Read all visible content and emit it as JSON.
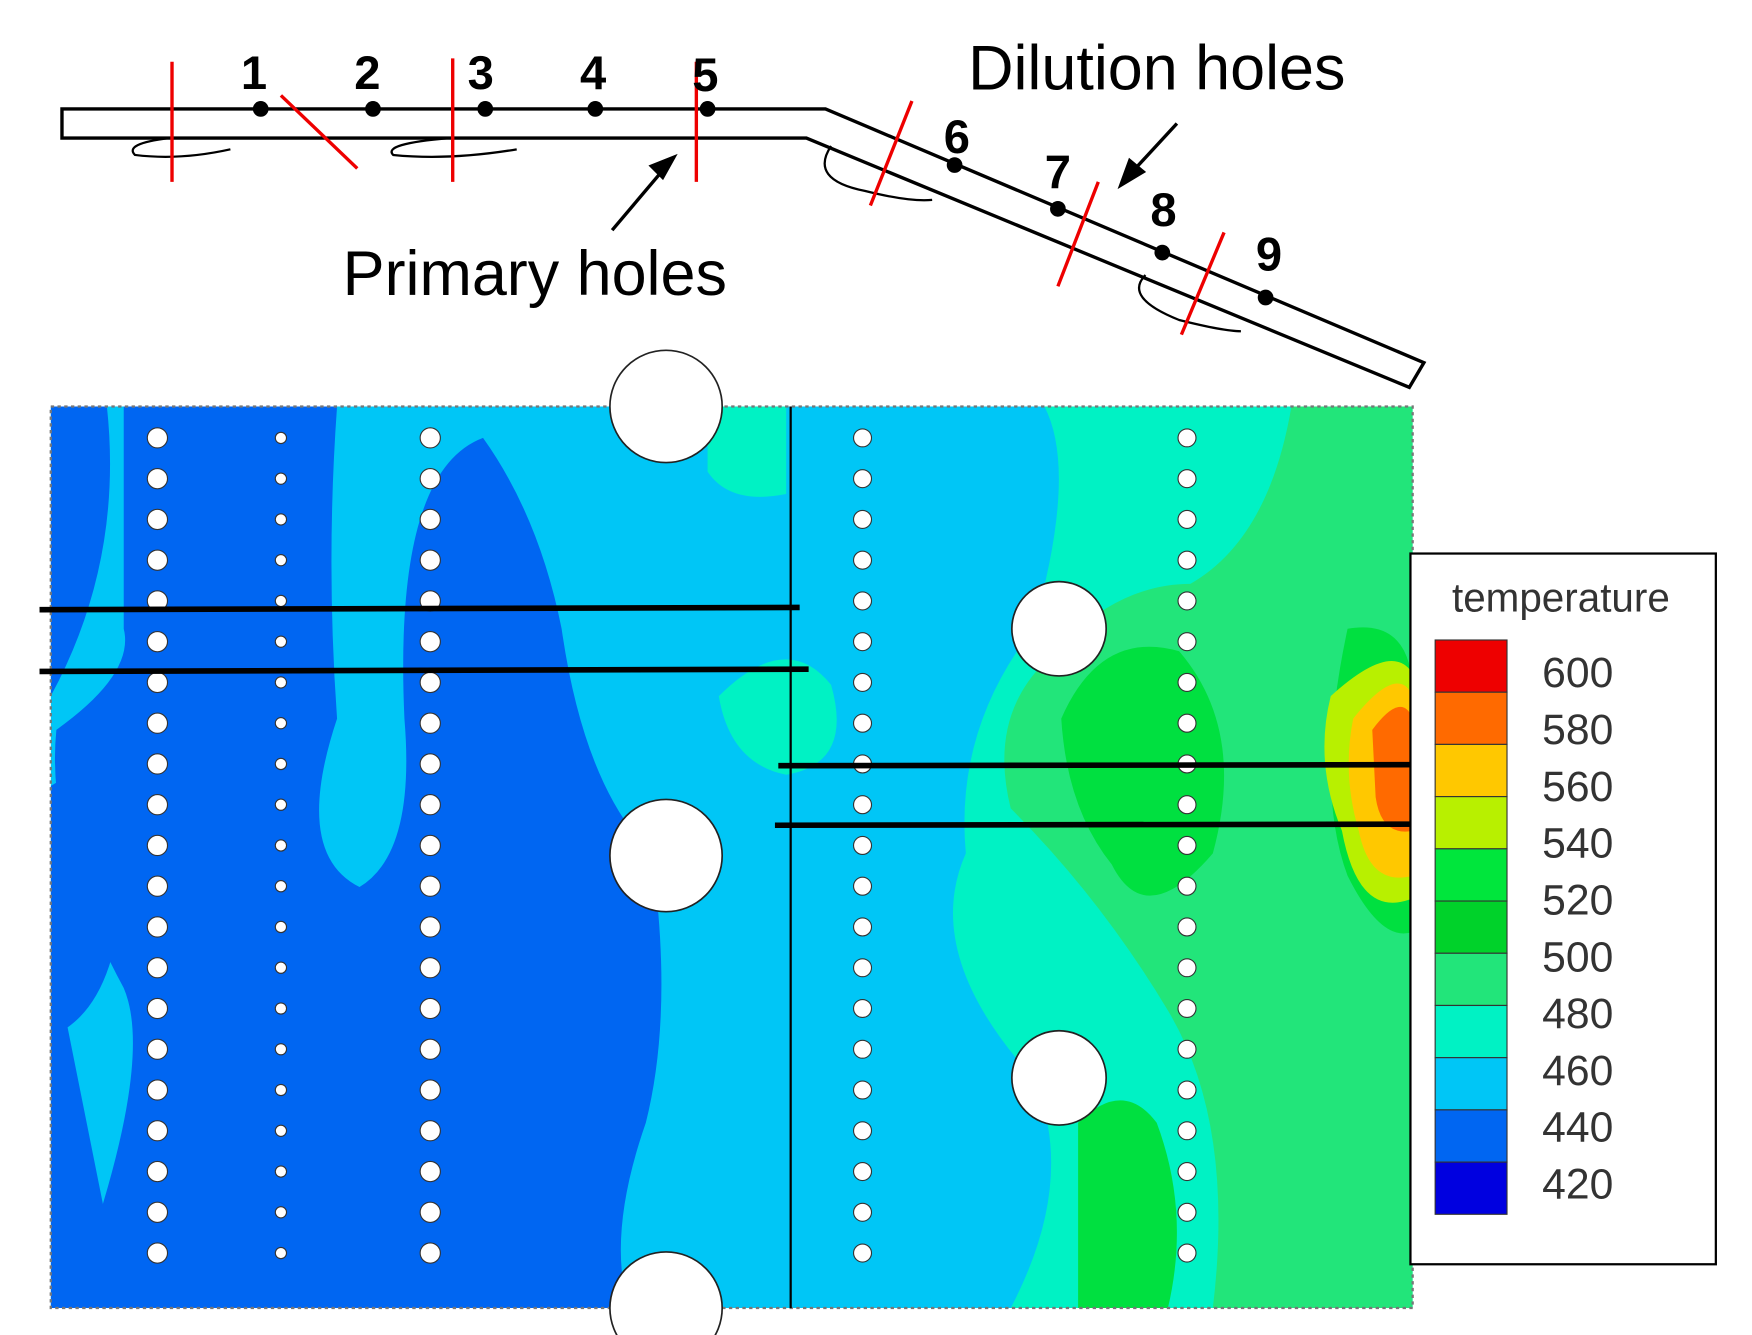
{
  "schematic": {
    "stations": [
      "1",
      "2",
      "3",
      "4",
      "5",
      "6",
      "7",
      "8",
      "9"
    ],
    "dilution_label": "Dilution holes",
    "primary_label": "Primary holes"
  },
  "legend": {
    "title": "temperature",
    "levels": [
      "600",
      "580",
      "560",
      "540",
      "520",
      "500",
      "480",
      "460",
      "440",
      "420"
    ]
  }
}
